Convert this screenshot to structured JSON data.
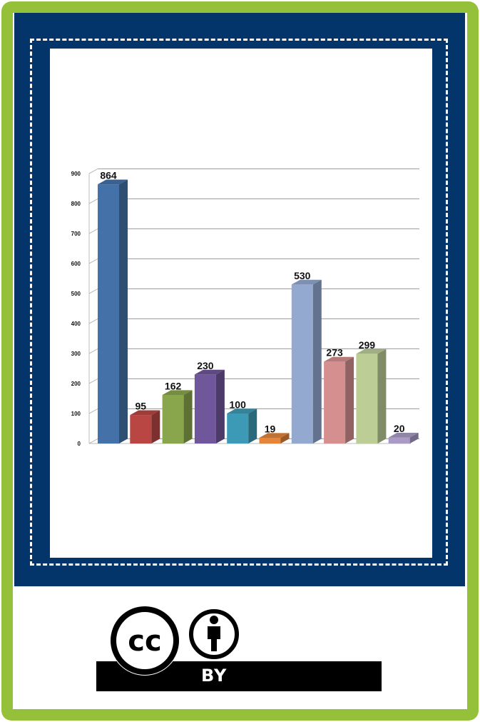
{
  "chart_data": {
    "type": "bar",
    "categories": [
      "",
      "",
      "",
      "",
      "",
      "",
      "",
      "",
      "",
      ""
    ],
    "values": [
      864,
      95,
      162,
      230,
      100,
      19,
      530,
      273,
      299,
      20
    ],
    "colors": [
      "#4472a8",
      "#b94643",
      "#8aa64c",
      "#70569a",
      "#3d9ab6",
      "#e3853a",
      "#93a9d0",
      "#d68f8f",
      "#bcce96",
      "#a99bc6"
    ],
    "ylim": [
      0,
      900
    ],
    "yticks": [
      0,
      100,
      200,
      300,
      400,
      500,
      600,
      700,
      800,
      900
    ],
    "grid": true,
    "title": "",
    "xlabel": "",
    "ylabel": ""
  },
  "license": {
    "badge_text": "BY",
    "icons": [
      "creative-commons-icon",
      "attribution-person-icon"
    ]
  },
  "colors": {
    "frame_green": "#95c13a",
    "panel_navy": "#03356b"
  }
}
